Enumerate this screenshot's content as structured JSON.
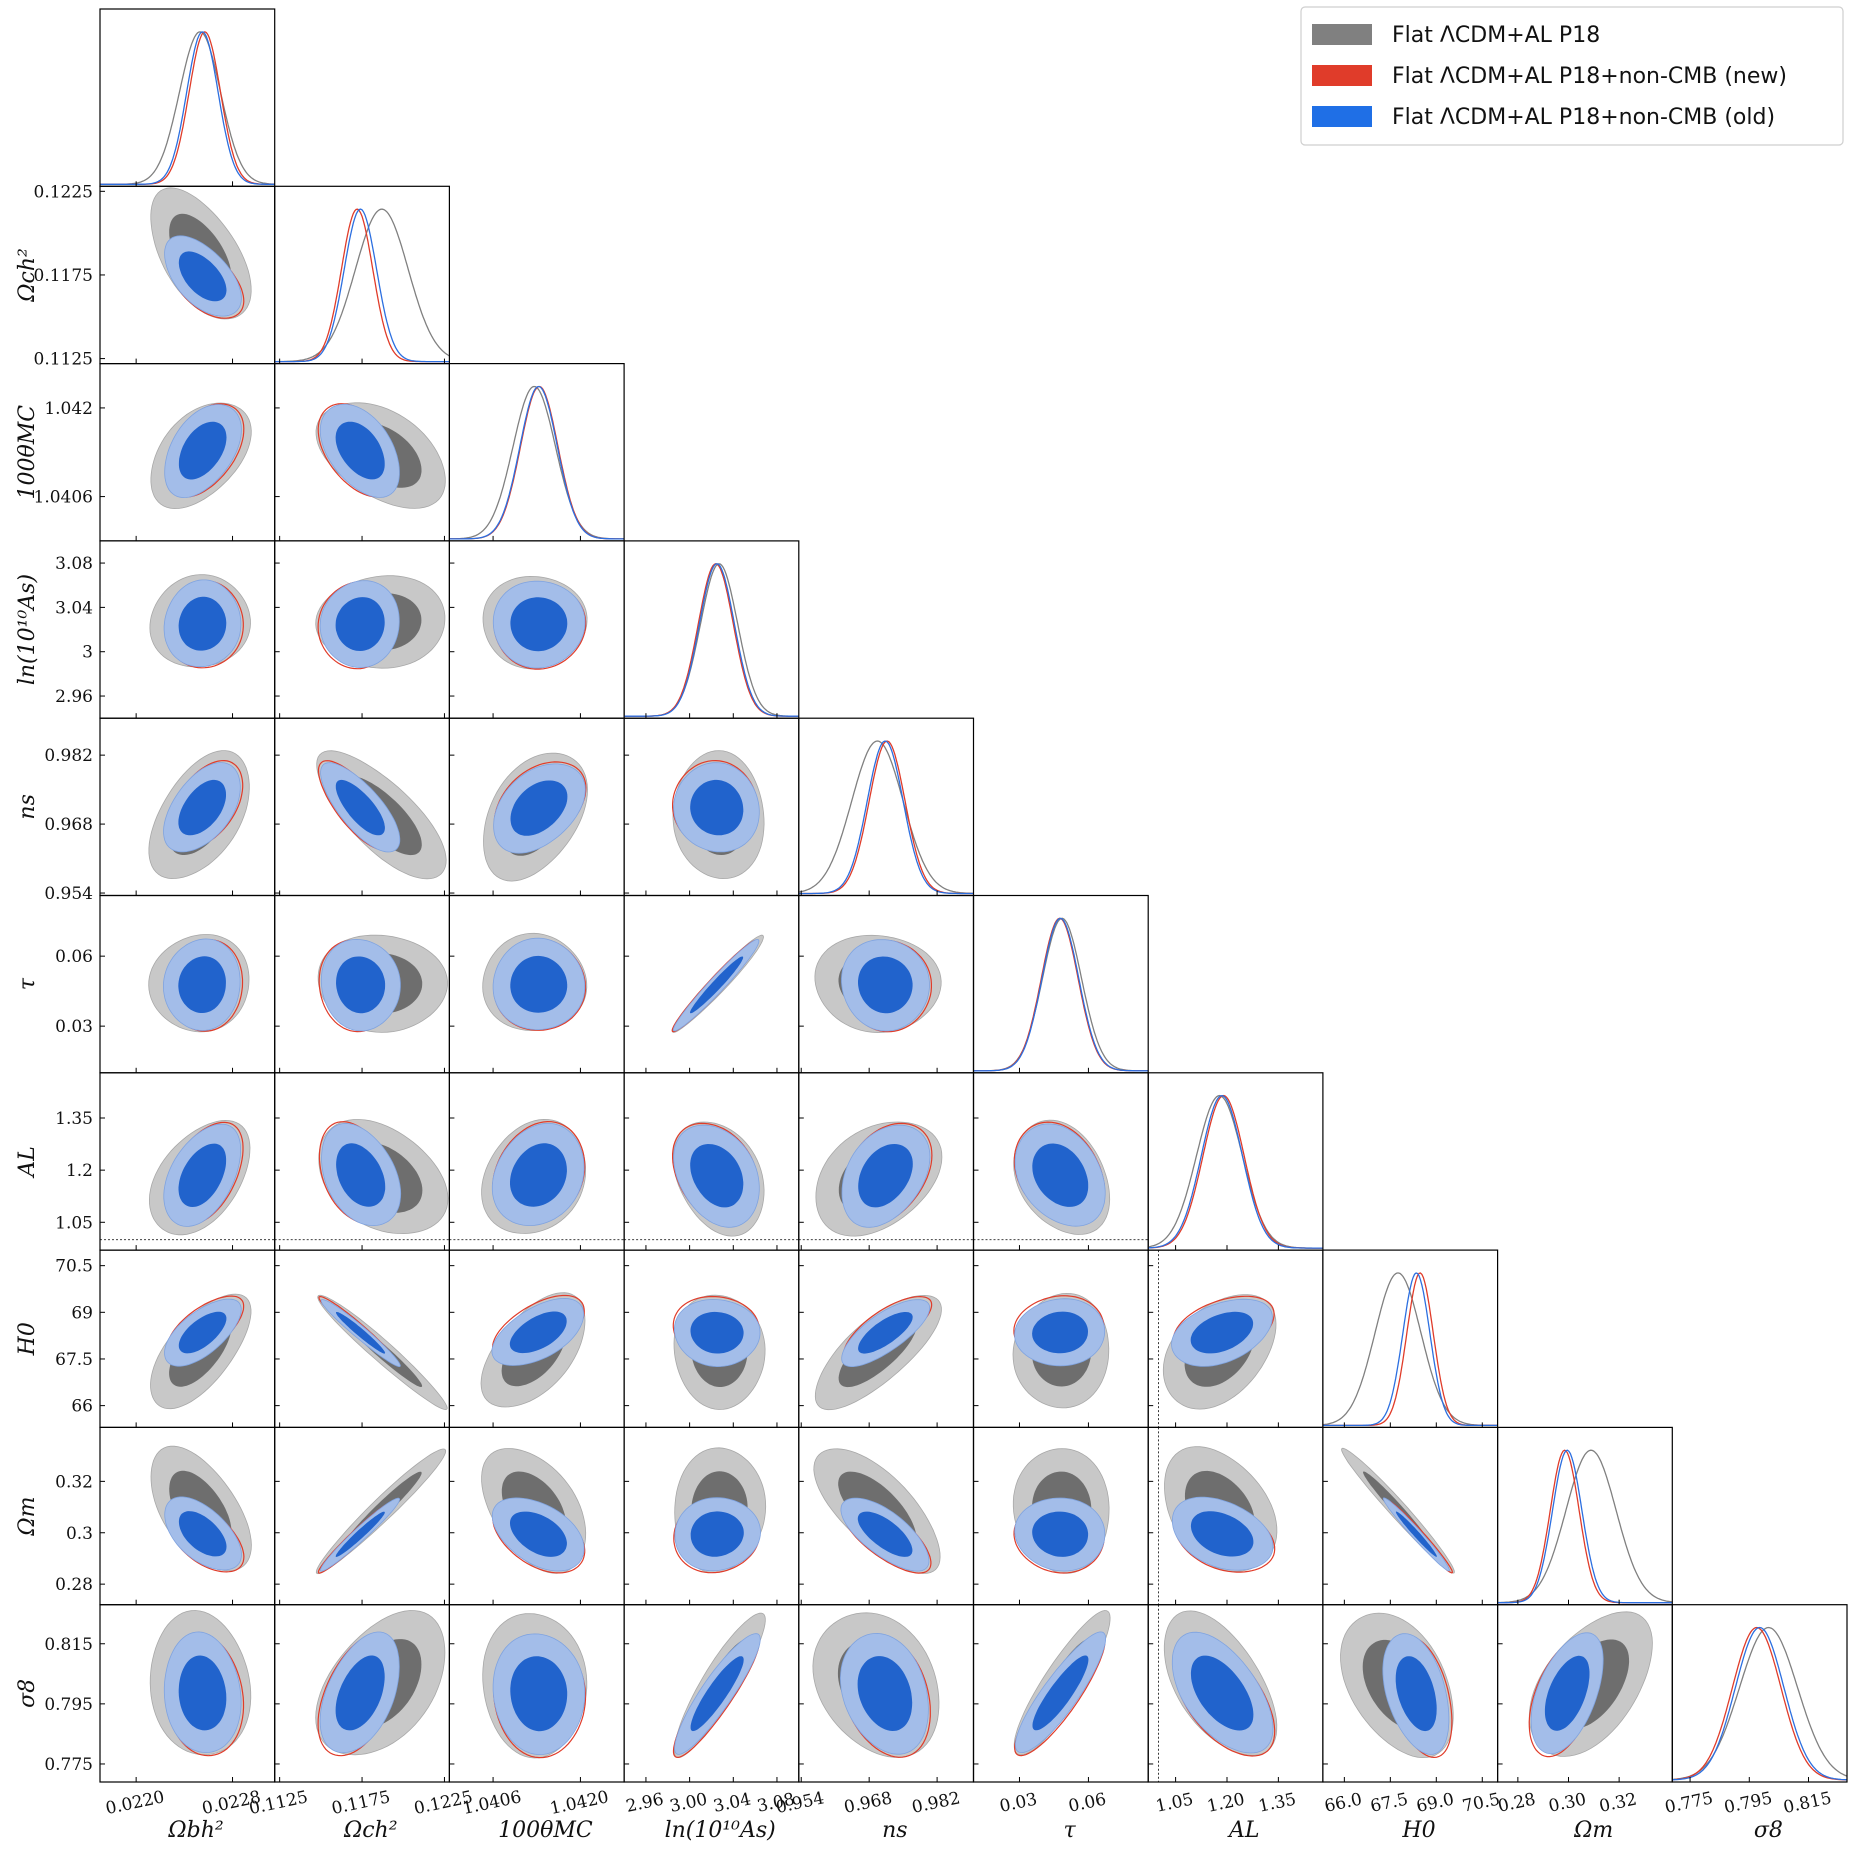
{
  "chart_data": {
    "type": "triangle-corner-plot",
    "params": [
      {
        "label": "Ωbh²",
        "min": 0.0217,
        "max": 0.02315,
        "ticks": [
          0.022,
          0.0228
        ],
        "tick_labels": [
          "0.0220",
          "0.0228"
        ]
      },
      {
        "label": "Ωch²",
        "min": 0.1122,
        "max": 0.1228,
        "ticks": [
          0.1125,
          0.1175,
          0.1225
        ],
        "tick_labels": [
          "0.1125",
          "0.1175",
          "0.1225"
        ]
      },
      {
        "label": "100θMC",
        "min": 1.0399,
        "max": 1.0427,
        "ticks": [
          1.0406,
          1.042
        ],
        "tick_labels": [
          "1.0406",
          "1.0420"
        ]
      },
      {
        "label": "ln(10¹⁰As)",
        "min": 2.94,
        "max": 3.1,
        "ticks": [
          2.96,
          3.0,
          3.04,
          3.08
        ],
        "tick_labels": [
          "2.96",
          "3.00",
          "3.04",
          "3.08"
        ]
      },
      {
        "label": "ns",
        "min": 0.9535,
        "max": 0.9895,
        "ticks": [
          0.954,
          0.968,
          0.982
        ],
        "tick_labels": [
          "0.954",
          "0.968",
          "0.982"
        ]
      },
      {
        "label": "τ",
        "min": 0.01,
        "max": 0.086,
        "ticks": [
          0.03,
          0.06
        ],
        "tick_labels": [
          "0.03",
          "0.06"
        ]
      },
      {
        "label": "AL",
        "min": 0.97,
        "max": 1.48,
        "ticks": [
          1.05,
          1.2,
          1.35
        ],
        "tick_labels": [
          "1.05",
          "1.20",
          "1.35"
        ]
      },
      {
        "label": "H0",
        "min": 65.3,
        "max": 71.0,
        "ticks": [
          66.0,
          67.5,
          69.0,
          70.5
        ],
        "tick_labels": [
          "66.0",
          "67.5",
          "69.0",
          "70.5"
        ]
      },
      {
        "label": "Ωm",
        "min": 0.272,
        "max": 0.341,
        "ticks": [
          0.28,
          0.3,
          0.32
        ],
        "tick_labels": [
          "0.28",
          "0.30",
          "0.32"
        ]
      },
      {
        "label": "σ8",
        "min": 0.769,
        "max": 0.828,
        "ticks": [
          0.775,
          0.795,
          0.815
        ],
        "tick_labels": [
          "0.775",
          "0.795",
          "0.815"
        ]
      }
    ],
    "row_tick_labels": [
      null,
      [
        "0.1125",
        "0.1175",
        "0.1225"
      ],
      [
        "1.0406",
        "1.042"
      ],
      [
        "2.96",
        "3",
        "3.04",
        "3.08"
      ],
      [
        "0.954",
        "0.968",
        "0.982"
      ],
      [
        "0.03",
        "0.06"
      ],
      [
        "1.05",
        "1.2",
        "1.35"
      ],
      [
        "66",
        "67.5",
        "69",
        "70.5"
      ],
      [
        "0.28",
        "0.3",
        "0.32"
      ],
      [
        "0.775",
        "0.795",
        "0.815"
      ]
    ],
    "series": [
      {
        "name": "Flat ΛCDM+AL P18",
        "legend_label": "Flat ΛCDM+AL P18",
        "color": "#808080",
        "means": [
          0.02253,
          0.1187,
          1.04126,
          3.027,
          0.9697,
          0.0485,
          1.178,
          67.75,
          0.3089,
          0.8015
        ],
        "sigmas": [
          0.00017,
          0.0016,
          0.00034,
          0.017,
          0.0053,
          0.0085,
          0.067,
          0.75,
          0.0099,
          0.0098
        ]
      },
      {
        "name": "Flat ΛCDM+AL P18+non-CMB (new)",
        "legend_label": "Flat ΛCDM+AL P18+non-CMB (new)",
        "color": "#e03c2a",
        "means": [
          0.02257,
          0.1172,
          1.04134,
          3.024,
          0.9717,
          0.0475,
          1.19,
          68.47,
          0.2985,
          0.7975
        ],
        "sigmas": [
          0.00013,
          0.00095,
          0.0003,
          0.016,
          0.0037,
          0.008,
          0.06,
          0.43,
          0.0057,
          0.0082
        ]
      },
      {
        "name": "Flat ΛCDM+AL P18+non-CMB (old)",
        "legend_label": "Flat ΛCDM+AL P18+non-CMB (old)",
        "color": "#2c6fe0",
        "means": [
          0.02255,
          0.1174,
          1.04133,
          3.025,
          0.9713,
          0.0478,
          1.185,
          68.35,
          0.2995,
          0.7985
        ],
        "sigmas": [
          0.00013,
          0.00098,
          0.0003,
          0.016,
          0.0037,
          0.008,
          0.06,
          0.44,
          0.0058,
          0.0082
        ]
      }
    ],
    "correlations": [
      [
        1,
        -0.55,
        0.45,
        0.05,
        0.5,
        0.05,
        0.45,
        0.65,
        -0.55,
        -0.1
      ],
      [
        -0.55,
        1,
        -0.45,
        0.05,
        -0.75,
        -0.05,
        -0.35,
        -0.97,
        0.97,
        0.45
      ],
      [
        0.45,
        -0.45,
        1,
        0.0,
        0.4,
        0.0,
        0.2,
        0.55,
        -0.45,
        -0.05
      ],
      [
        0.05,
        0.05,
        0.0,
        1,
        -0.05,
        0.97,
        -0.3,
        -0.05,
        0.05,
        0.9
      ],
      [
        0.5,
        -0.75,
        0.4,
        -0.05,
        1,
        -0.05,
        0.35,
        0.75,
        -0.7,
        -0.25
      ],
      [
        0.05,
        -0.05,
        0.0,
        0.97,
        -0.05,
        1,
        -0.3,
        0.05,
        -0.05,
        0.88
      ],
      [
        0.45,
        -0.35,
        0.2,
        -0.3,
        0.35,
        -0.3,
        1,
        0.4,
        -0.35,
        -0.55
      ],
      [
        0.65,
        -0.97,
        0.55,
        -0.05,
        0.75,
        0.05,
        0.4,
        1,
        -0.98,
        -0.4
      ],
      [
        -0.55,
        0.97,
        -0.45,
        0.05,
        -0.7,
        -0.05,
        -0.35,
        -0.98,
        1,
        0.5
      ],
      [
        -0.1,
        0.45,
        -0.05,
        0.9,
        -0.25,
        0.88,
        -0.55,
        -0.4,
        0.5,
        1
      ]
    ],
    "reference_lines": [
      {
        "param": "AL",
        "value": 1.0,
        "style": "dotted"
      }
    ],
    "legend": {
      "location": "upper-right"
    },
    "grid": false
  },
  "colors": {
    "p18_fill_outer": "#c8c8c8",
    "p18_fill_inner": "#6e6e6e",
    "blue_fill_outer": "#a3bde9",
    "blue_fill_inner": "#2163cc",
    "legend_swatches": [
      "#808080",
      "#e03c2a",
      "#1f6fe6"
    ]
  }
}
